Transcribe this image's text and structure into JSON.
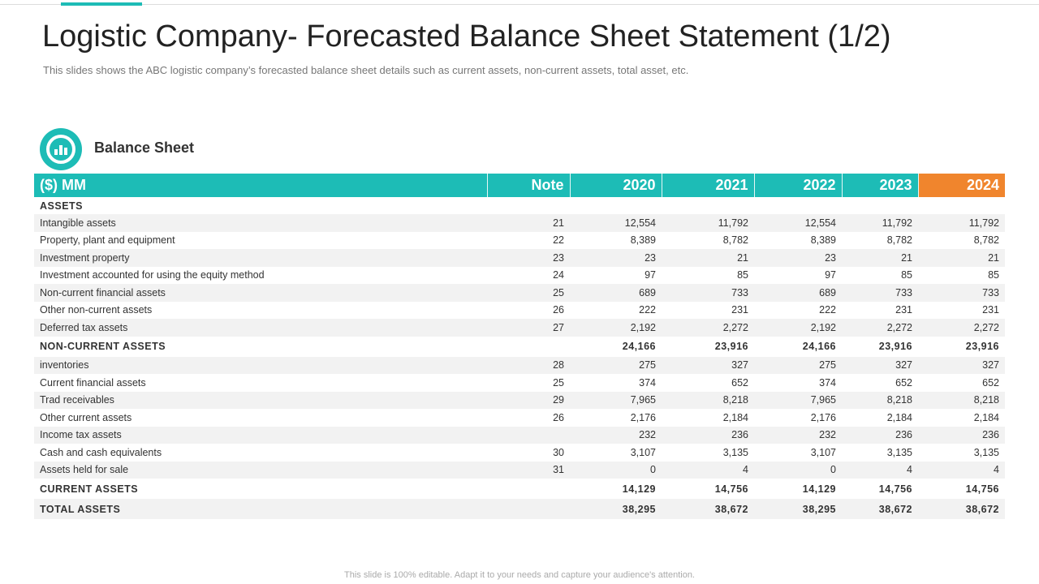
{
  "header": {
    "title": "Logistic Company- Forecasted Balance Sheet Statement (1/2)",
    "subtitle": "This slides shows the ABC logistic company’s forecasted balance sheet details such as current assets, non-current assets, total asset, etc."
  },
  "section": {
    "title": "Balance Sheet"
  },
  "table": {
    "columns": [
      "($) MM",
      "Note",
      "2020",
      "2021",
      "2022",
      "2023",
      "2024"
    ],
    "rows": [
      {
        "label": "ASSETS"
      },
      {
        "label": "Intangible assets",
        "note": "21",
        "values": [
          "12,554",
          "11,792",
          "12,554",
          "11,792",
          "11,792"
        ]
      },
      {
        "label": "Property, plant and equipment",
        "note": "22",
        "values": [
          "8,389",
          "8,782",
          "8,389",
          "8,782",
          "8,782"
        ]
      },
      {
        "label": "Investment property",
        "note": "23",
        "values": [
          "23",
          "21",
          "23",
          "21",
          "21"
        ]
      },
      {
        "label": "Investment accounted for using the equity method",
        "note": "24",
        "values": [
          "97",
          "85",
          "97",
          "85",
          "85"
        ]
      },
      {
        "label": "Non-current financial assets",
        "note": "25",
        "values": [
          "689",
          "733",
          "689",
          "733",
          "733"
        ]
      },
      {
        "label": "Other non-current assets",
        "note": "26",
        "values": [
          "222",
          "231",
          "222",
          "231",
          "231"
        ]
      },
      {
        "label": "Deferred tax assets",
        "note": "27",
        "values": [
          "2,192",
          "2,272",
          "2,192",
          "2,272",
          "2,272"
        ]
      },
      {
        "label": "NON-CURRENT ASSETS",
        "values": [
          "24,166",
          "23,916",
          "24,166",
          "23,916",
          "23,916"
        ]
      },
      {
        "label": "inventories",
        "note": "28",
        "values": [
          "275",
          "327",
          "275",
          "327",
          "327"
        ]
      },
      {
        "label": "Current financial assets",
        "note": "25",
        "values": [
          "374",
          "652",
          "374",
          "652",
          "652"
        ]
      },
      {
        "label": "Trad receivables",
        "note": "29",
        "values": [
          "7,965",
          "8,218",
          "7,965",
          "8,218",
          "8,218"
        ]
      },
      {
        "label": "Other current assets",
        "note": "26",
        "values": [
          "2,176",
          "2,184",
          "2,176",
          "2,184",
          "2,184"
        ]
      },
      {
        "label": "Income tax assets",
        "values": [
          "232",
          "236",
          "232",
          "236",
          "236"
        ]
      },
      {
        "label": "Cash and cash equivalents",
        "note": "30",
        "values": [
          "3,107",
          "3,135",
          "3,107",
          "3,135",
          "3,135"
        ]
      },
      {
        "label": "Assets held for sale",
        "note": "31",
        "values": [
          "0",
          "4",
          "0",
          "4",
          "4"
        ]
      },
      {
        "label": "CURRENT ASSETS",
        "values": [
          "14,129",
          "14,756",
          "14,129",
          "14,756",
          "14,756"
        ]
      },
      {
        "label": "TOTAL ASSETS",
        "values": [
          "38,295",
          "38,672",
          "38,295",
          "38,672",
          "38,672"
        ]
      }
    ]
  },
  "footer": {
    "text": "This slide is 100% editable. Adapt it to your needs and capture your audience's attention."
  }
}
